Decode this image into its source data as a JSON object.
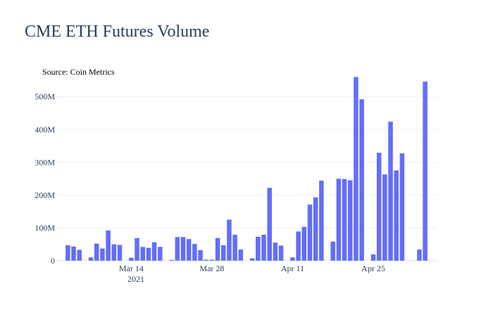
{
  "chart_data": {
    "type": "bar",
    "title": "CME ETH Futures Volume",
    "annotation": "Source: Coin Metrics",
    "xlabel": "",
    "ylabel": "",
    "x_start": "2021-03-03",
    "x_range": [
      "2021-03-01",
      "2021-05-06"
    ],
    "ylim": [
      0,
      580000000
    ],
    "yticks": [
      0,
      100000000,
      200000000,
      300000000,
      400000000,
      500000000
    ],
    "ytick_labels": [
      "0",
      "100M",
      "200M",
      "300M",
      "400M",
      "500M"
    ],
    "xticks": [
      "2021-03-14",
      "2021-03-28",
      "2021-04-11",
      "2021-04-25"
    ],
    "xtick_labels": [
      "Mar 14",
      "Mar 28",
      "Apr 11",
      "Apr 25"
    ],
    "xtick_year_label": "2021",
    "grid": true,
    "bar_color": "#636efa",
    "dates": [
      "2021-03-03",
      "2021-03-04",
      "2021-03-05",
      "2021-03-06",
      "2021-03-07",
      "2021-03-08",
      "2021-03-09",
      "2021-03-10",
      "2021-03-11",
      "2021-03-12",
      "2021-03-13",
      "2021-03-14",
      "2021-03-15",
      "2021-03-16",
      "2021-03-17",
      "2021-03-18",
      "2021-03-19",
      "2021-03-20",
      "2021-03-21",
      "2021-03-22",
      "2021-03-23",
      "2021-03-24",
      "2021-03-25",
      "2021-03-26",
      "2021-03-27",
      "2021-03-28",
      "2021-03-29",
      "2021-03-30",
      "2021-03-31",
      "2021-04-01",
      "2021-04-02",
      "2021-04-03",
      "2021-04-04",
      "2021-04-05",
      "2021-04-06",
      "2021-04-07",
      "2021-04-08",
      "2021-04-09",
      "2021-04-10",
      "2021-04-11",
      "2021-04-12",
      "2021-04-13",
      "2021-04-14",
      "2021-04-15",
      "2021-04-16",
      "2021-04-17",
      "2021-04-18",
      "2021-04-19",
      "2021-04-20",
      "2021-04-21",
      "2021-04-22",
      "2021-04-23",
      "2021-04-24",
      "2021-04-25",
      "2021-04-26",
      "2021-04-27",
      "2021-04-28",
      "2021-04-29",
      "2021-04-30",
      "2021-05-01",
      "2021-05-02",
      "2021-05-03",
      "2021-05-04"
    ],
    "values": [
      47000000,
      43000000,
      33000000,
      0,
      10000000,
      52000000,
      37000000,
      92000000,
      50000000,
      48000000,
      0,
      9000000,
      69000000,
      42000000,
      39000000,
      56000000,
      42000000,
      0,
      2000000,
      72000000,
      72000000,
      66000000,
      51000000,
      32000000,
      3000000,
      3000000,
      69000000,
      47000000,
      125000000,
      79000000,
      34000000,
      0,
      7000000,
      73000000,
      79000000,
      222000000,
      55000000,
      46000000,
      0,
      10000000,
      89000000,
      103000000,
      171000000,
      193000000,
      244000000,
      0,
      58000000,
      250000000,
      249000000,
      245000000,
      560000000,
      492000000,
      0,
      19000000,
      329000000,
      263000000,
      424000000,
      275000000,
      327000000,
      0,
      0,
      34000000,
      546000000
    ]
  }
}
